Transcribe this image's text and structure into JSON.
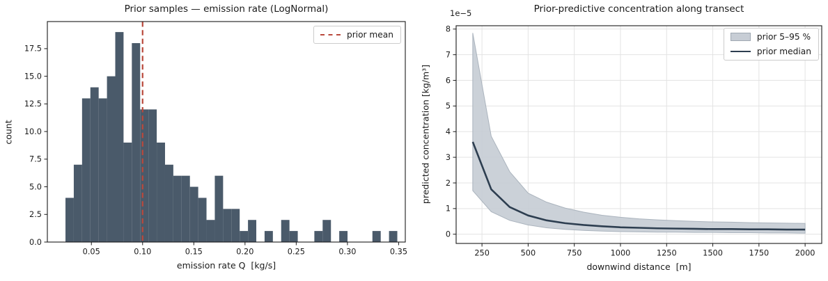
{
  "figure_background": "#ffffff",
  "chart_data": [
    {
      "type": "bar",
      "role": "histogram",
      "title": "Prior samples — emission rate (LogNormal)",
      "xlabel": "emission rate Q  [kg/s]",
      "ylabel": "count",
      "bar_color": "#4a5a6a",
      "bins_start": 0.0247,
      "bin_width": 0.0081,
      "counts": [
        4,
        7,
        13,
        14,
        13,
        15,
        19,
        9,
        18,
        12,
        12,
        9,
        7,
        6,
        6,
        5,
        4,
        2,
        6,
        3,
        3,
        1,
        2,
        0,
        1,
        0,
        2,
        1,
        0,
        0,
        1,
        2,
        0,
        1,
        0,
        0,
        0,
        1,
        0,
        1
      ],
      "xticks": [
        0.05,
        0.1,
        0.15,
        0.2,
        0.25,
        0.3,
        0.35
      ],
      "xtick_labels": [
        "0.05",
        "0.10",
        "0.15",
        "0.20",
        "0.25",
        "0.30",
        "0.35"
      ],
      "yticks": [
        0,
        2.5,
        5,
        7.5,
        10,
        12.5,
        15,
        17.5
      ],
      "ytick_labels": [
        "0.0",
        "2.5",
        "5.0",
        "7.5",
        "10.0",
        "12.5",
        "15.0",
        "17.5"
      ],
      "xlim": [
        0.007,
        0.3565
      ],
      "ylim": [
        0,
        19.95
      ],
      "grid": false,
      "vline": {
        "x": 0.1,
        "label": "prior mean",
        "color": "#b9493c",
        "linestyle": "dashed"
      },
      "legend_position": "upper right"
    },
    {
      "type": "line",
      "role": "prior-predictive",
      "title": "Prior-predictive concentration along transect",
      "xlabel": "downwind distance  [m]",
      "ylabel": "predicted concentration [kg/m³]",
      "y_offset_label": "1e−5",
      "x": [
        200,
        300,
        400,
        500,
        600,
        700,
        800,
        900,
        1000,
        1100,
        1200,
        1300,
        1400,
        1500,
        1600,
        1700,
        1800,
        1900,
        2000
      ],
      "series": [
        {
          "name": "prior median",
          "color": "#2d3e50",
          "values": [
            3.6,
            1.75,
            1.06,
            0.73,
            0.54,
            0.43,
            0.36,
            0.31,
            0.27,
            0.25,
            0.23,
            0.22,
            0.21,
            0.2,
            0.2,
            0.19,
            0.19,
            0.18,
            0.18
          ]
        }
      ],
      "band": {
        "name": "prior 5–95 %",
        "fill": "#c7cdd5",
        "edge": "#aab3bd",
        "upper": [
          7.85,
          3.82,
          2.44,
          1.6,
          1.25,
          1.02,
          0.86,
          0.74,
          0.66,
          0.6,
          0.56,
          0.53,
          0.5,
          0.48,
          0.47,
          0.45,
          0.44,
          0.43,
          0.42
        ],
        "lower": [
          1.7,
          0.88,
          0.54,
          0.36,
          0.25,
          0.19,
          0.15,
          0.12,
          0.1,
          0.09,
          0.08,
          0.08,
          0.07,
          0.07,
          0.06,
          0.06,
          0.05,
          0.05,
          0.04
        ]
      },
      "xticks": [
        250,
        500,
        750,
        1000,
        1250,
        1500,
        1750,
        2000
      ],
      "xtick_labels": [
        "250",
        "500",
        "750",
        "1000",
        "1250",
        "1500",
        "1750",
        "2000"
      ],
      "yticks": [
        0,
        1,
        2,
        3,
        4,
        5,
        6,
        7,
        8
      ],
      "ytick_labels": [
        "0",
        "1",
        "2",
        "3",
        "4",
        "5",
        "6",
        "7",
        "8"
      ],
      "xlim": [
        110,
        2090
      ],
      "ylim": [
        -0.36,
        8.13
      ],
      "grid": true,
      "grid_color": "#e3e3e3",
      "legend_position": "upper right"
    }
  ],
  "style": {
    "spine_color": "#1a1a1a",
    "tick_color": "#1a1a1a",
    "text_color": "#1a1a1a"
  }
}
